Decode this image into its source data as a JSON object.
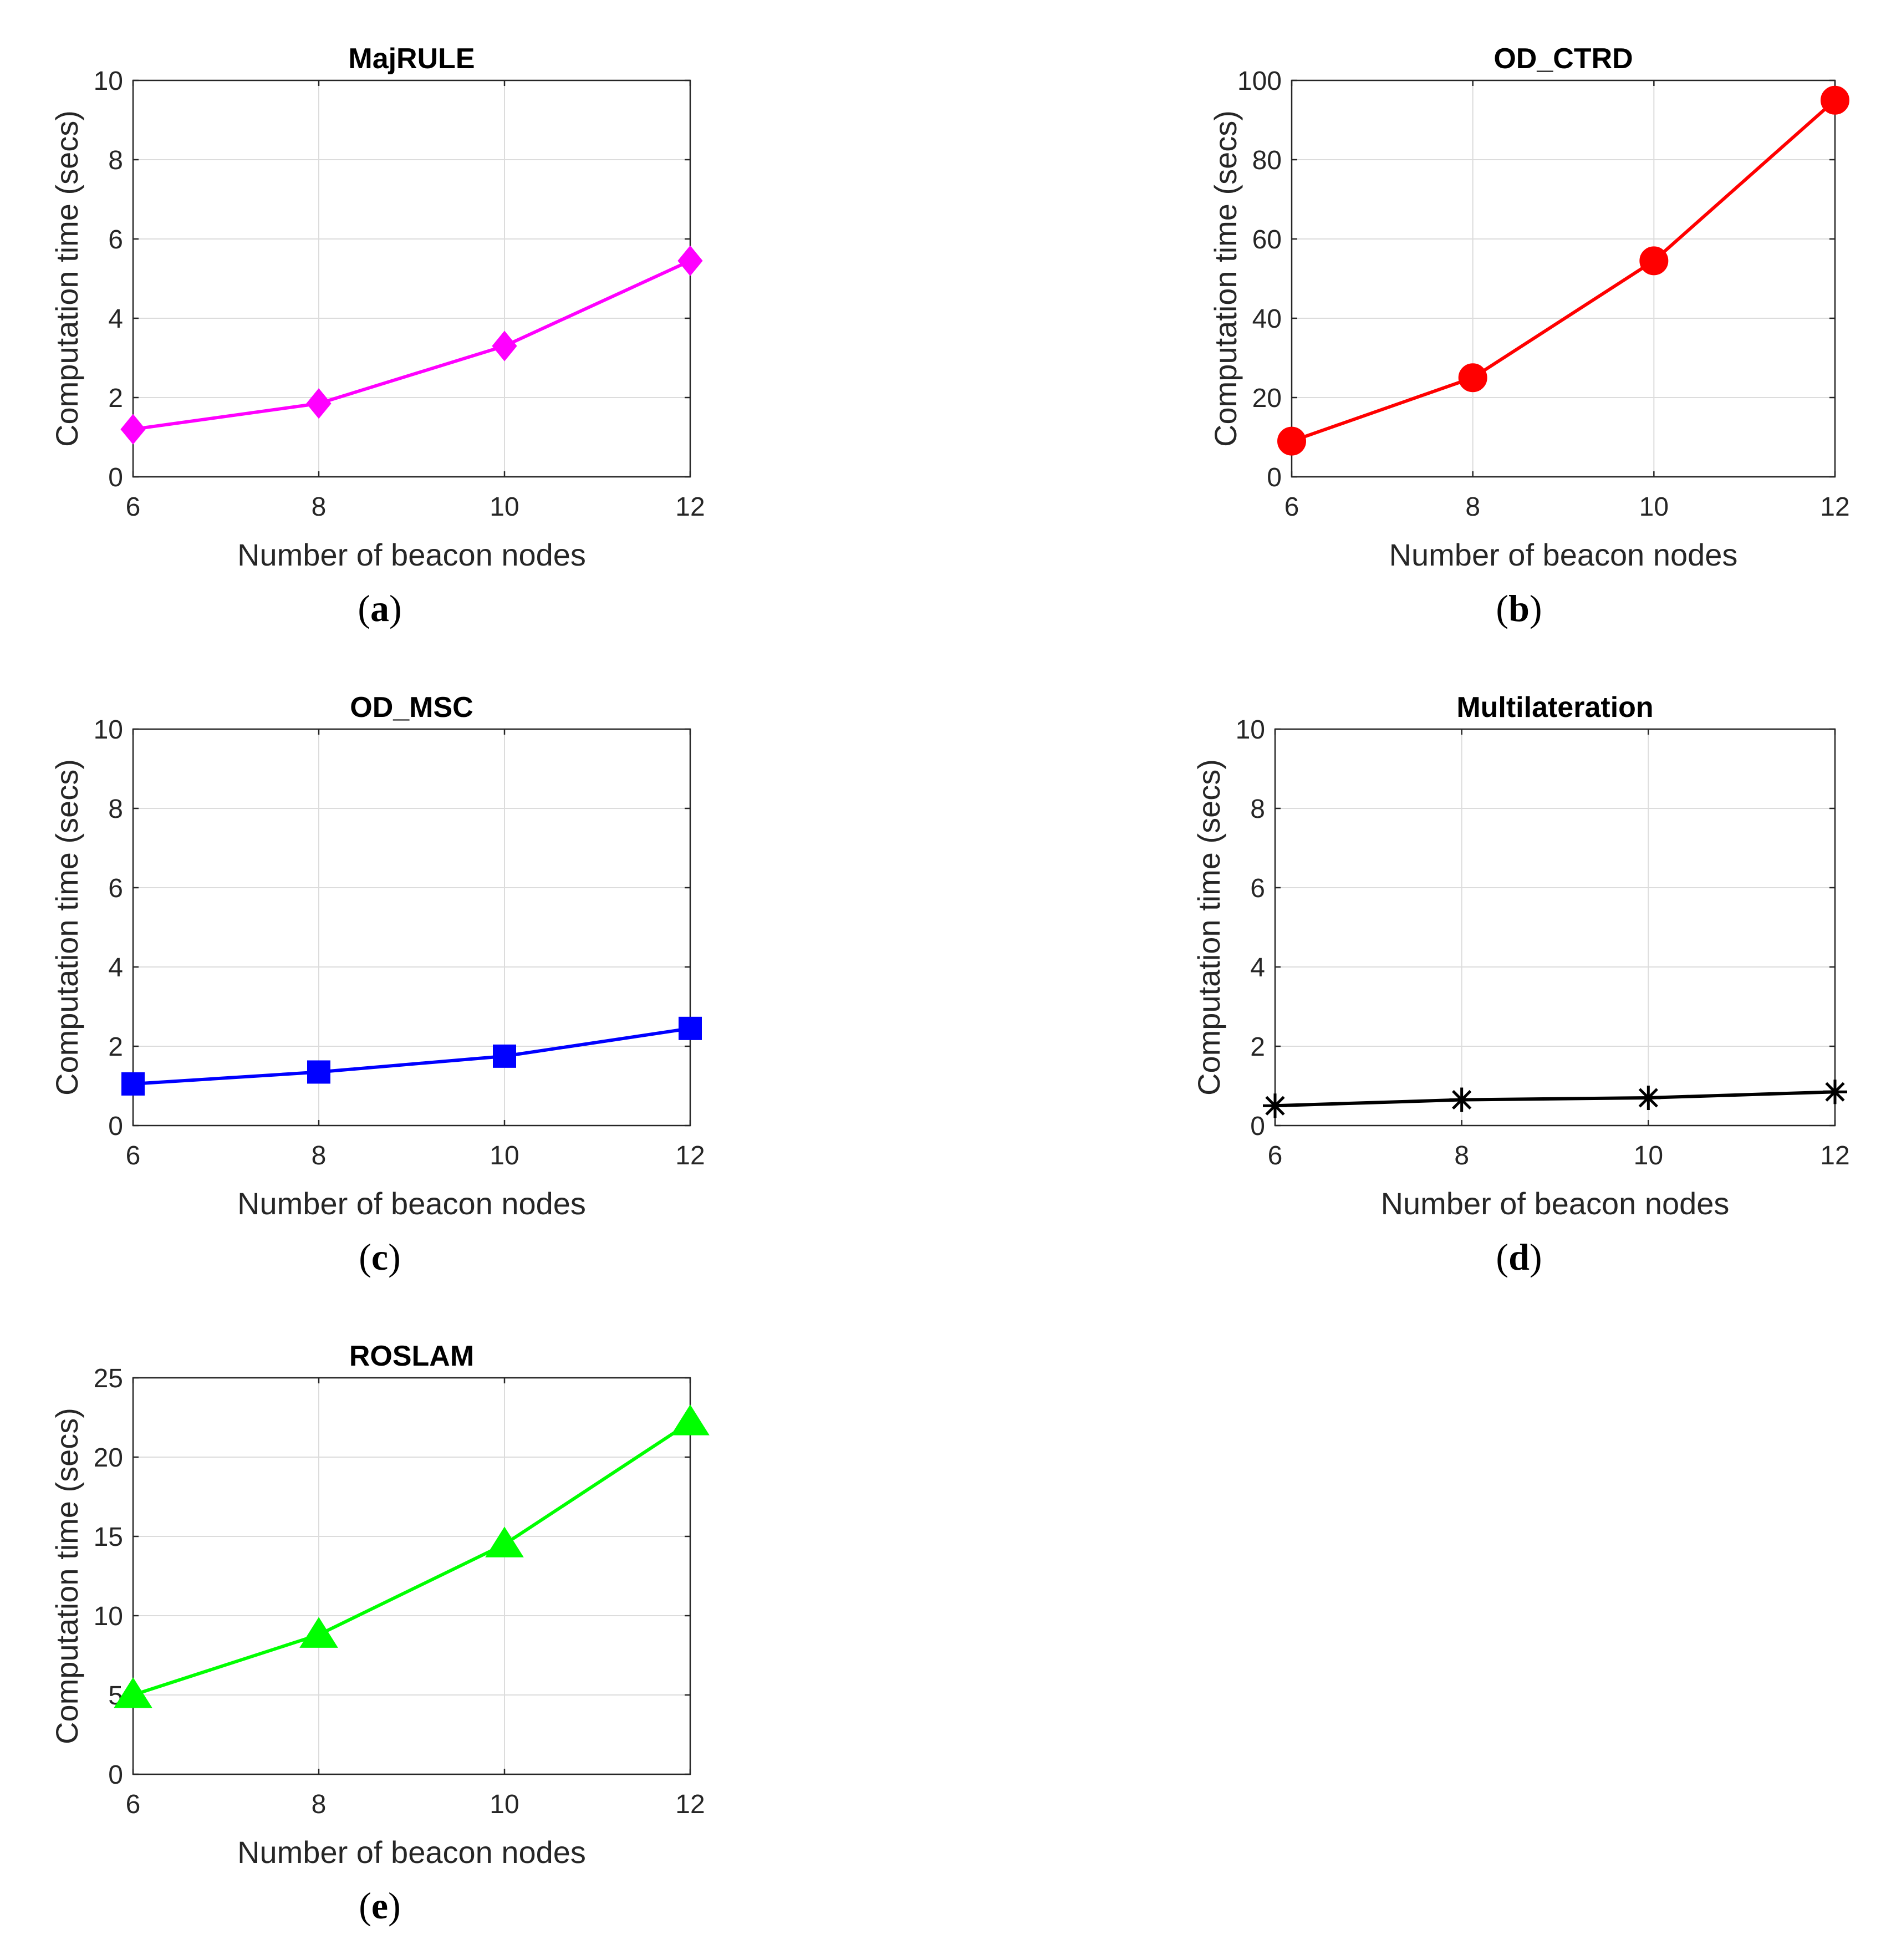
{
  "chart_data": [
    {
      "id": "a",
      "type": "line",
      "title": "MajRULE",
      "xlabel": "Number of beacon nodes",
      "ylabel": "Computation time (secs)",
      "x": [
        6,
        8,
        10,
        12
      ],
      "xticks": [
        6,
        8,
        10,
        12
      ],
      "ylim": [
        0,
        10
      ],
      "yticks": [
        0,
        2,
        4,
        6,
        8,
        10
      ],
      "grid": true,
      "series": [
        {
          "name": "MajRULE",
          "values": [
            1.2,
            1.85,
            3.3,
            5.45
          ],
          "color": "#ff00ff",
          "marker": "diamond"
        }
      ],
      "caption": {
        "open": "(",
        "letter": "a",
        "close": ")"
      }
    },
    {
      "id": "b",
      "type": "line",
      "title": "OD_CTRD",
      "xlabel": "Number of beacon nodes",
      "ylabel": "Computation time (secs)",
      "x": [
        6,
        8,
        10,
        12
      ],
      "xticks": [
        6,
        8,
        10,
        12
      ],
      "ylim": [
        0,
        100
      ],
      "yticks": [
        0,
        20,
        40,
        60,
        80,
        100
      ],
      "grid": true,
      "series": [
        {
          "name": "OD_CTRD",
          "values": [
            9,
            25,
            54.5,
            95
          ],
          "color": "#ff0000",
          "marker": "circle"
        }
      ],
      "caption": {
        "open": "(",
        "letter": "b",
        "close": ")"
      }
    },
    {
      "id": "c",
      "type": "line",
      "title": "OD_MSC",
      "xlabel": "Number of beacon nodes",
      "ylabel": "Computation time (secs)",
      "x": [
        6,
        8,
        10,
        12
      ],
      "xticks": [
        6,
        8,
        10,
        12
      ],
      "ylim": [
        0,
        10
      ],
      "yticks": [
        0,
        2,
        4,
        6,
        8,
        10
      ],
      "grid": true,
      "series": [
        {
          "name": "OD_MSC",
          "values": [
            1.05,
            1.35,
            1.75,
            2.45
          ],
          "color": "#0000ff",
          "marker": "square"
        }
      ],
      "caption": {
        "open": "(",
        "letter": "c",
        "close": ")"
      }
    },
    {
      "id": "d",
      "type": "line",
      "title": "Multilateration",
      "xlabel": "Number of beacon nodes",
      "ylabel": "Computation time (secs)",
      "x": [
        6,
        8,
        10,
        12
      ],
      "xticks": [
        6,
        8,
        10,
        12
      ],
      "ylim": [
        0,
        10
      ],
      "yticks": [
        0,
        2,
        4,
        6,
        8,
        10
      ],
      "grid": true,
      "series": [
        {
          "name": "Multilateration",
          "values": [
            0.5,
            0.65,
            0.7,
            0.85
          ],
          "color": "#000000",
          "marker": "asterisk"
        }
      ],
      "caption": {
        "open": "(",
        "letter": "d",
        "close": ")"
      }
    },
    {
      "id": "e",
      "type": "line",
      "title": "ROSLAM",
      "xlabel": "Number of beacon nodes",
      "ylabel": "Computation time (secs)",
      "x": [
        6,
        8,
        10,
        12
      ],
      "xticks": [
        6,
        8,
        10,
        12
      ],
      "ylim": [
        0,
        25
      ],
      "yticks": [
        0,
        5,
        10,
        15,
        20,
        25
      ],
      "grid": true,
      "series": [
        {
          "name": "ROSLAM",
          "values": [
            5,
            8.8,
            14.5,
            22.2
          ],
          "color": "#00ff00",
          "marker": "triangle"
        }
      ],
      "caption": {
        "open": "(",
        "letter": "e",
        "close": ")"
      }
    }
  ]
}
